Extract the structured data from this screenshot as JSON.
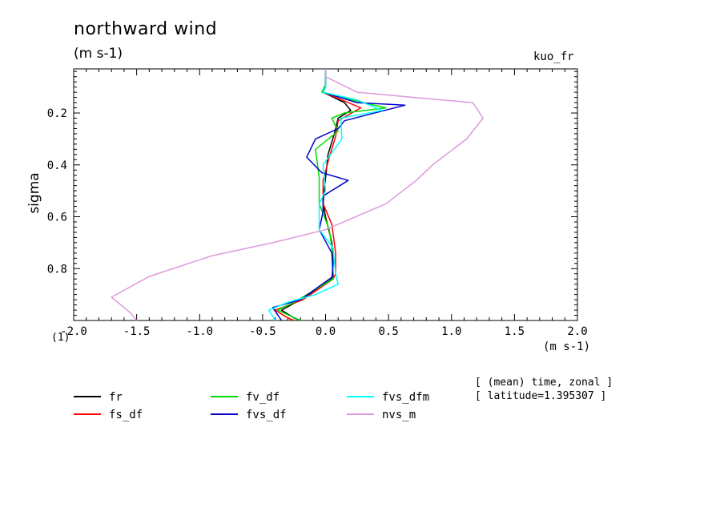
{
  "header": {
    "title": "northward wind",
    "units": "(m s-1)",
    "case_name": "kuo_fr",
    "x_units": "(m s-1)",
    "scale_factor": "(1)"
  },
  "meta": {
    "line1": "[ (mean) time, zonal ]",
    "line2": "[ latitude=1.395307 ]"
  },
  "chart_data": {
    "type": "line",
    "title": "northward wind",
    "subtitle": "(m s-1)",
    "xlabel": "(m s-1)",
    "ylabel": "sigma",
    "xlim": [
      -2.0,
      2.0
    ],
    "ylim": [
      0.03,
      1.0
    ],
    "y_reversed": true,
    "x_ticks": [
      "-2.0",
      "-1.5",
      "-1.0",
      "-0.5",
      "0.0",
      "0.5",
      "1.0",
      "1.5",
      "2.0"
    ],
    "x_tick_values": [
      -2.0,
      -1.5,
      -1.0,
      -0.5,
      0.0,
      0.5,
      1.0,
      1.5,
      2.0
    ],
    "y_ticks": [
      "0.2",
      "0.4",
      "0.6",
      "0.8"
    ],
    "y_tick_values": [
      0.2,
      0.4,
      0.6,
      0.8
    ],
    "legend_position": "bottom",
    "series": [
      {
        "name": "fr",
        "color": "#000000",
        "points": [
          [
            0.0,
            0.03
          ],
          [
            0.0,
            0.09
          ],
          [
            -0.02,
            0.12
          ],
          [
            0.15,
            0.16
          ],
          [
            0.2,
            0.19
          ],
          [
            0.1,
            0.22
          ],
          [
            0.07,
            0.28
          ],
          [
            0.02,
            0.36
          ],
          [
            0.0,
            0.45
          ],
          [
            -0.02,
            0.55
          ],
          [
            0.0,
            0.6
          ],
          [
            0.05,
            0.7
          ],
          [
            0.06,
            0.78
          ],
          [
            0.05,
            0.84
          ],
          [
            -0.2,
            0.92
          ],
          [
            -0.35,
            0.96
          ],
          [
            -0.25,
            0.99
          ],
          [
            -0.2,
            1.0
          ]
        ]
      },
      {
        "name": "fs_df",
        "color": "#ff0000",
        "points": [
          [
            0.0,
            0.03
          ],
          [
            0.0,
            0.09
          ],
          [
            -0.02,
            0.12
          ],
          [
            0.18,
            0.16
          ],
          [
            0.28,
            0.18
          ],
          [
            0.1,
            0.23
          ],
          [
            0.08,
            0.29
          ],
          [
            0.03,
            0.37
          ],
          [
            -0.02,
            0.46
          ],
          [
            -0.02,
            0.55
          ],
          [
            0.05,
            0.63
          ],
          [
            0.08,
            0.74
          ],
          [
            0.08,
            0.82
          ],
          [
            0.06,
            0.84
          ],
          [
            -0.18,
            0.92
          ],
          [
            -0.4,
            0.96
          ],
          [
            -0.3,
            0.99
          ],
          [
            -0.25,
            1.0
          ]
        ]
      },
      {
        "name": "fv_df",
        "color": "#00dd00",
        "points": [
          [
            0.0,
            0.03
          ],
          [
            0.0,
            0.09
          ],
          [
            -0.03,
            0.12
          ],
          [
            0.3,
            0.16
          ],
          [
            0.48,
            0.18
          ],
          [
            0.15,
            0.2
          ],
          [
            0.05,
            0.22
          ],
          [
            0.1,
            0.27
          ],
          [
            -0.08,
            0.34
          ],
          [
            -0.05,
            0.45
          ],
          [
            -0.05,
            0.55
          ],
          [
            0.03,
            0.65
          ],
          [
            0.05,
            0.72
          ],
          [
            0.06,
            0.84
          ],
          [
            -0.25,
            0.93
          ],
          [
            -0.38,
            0.96
          ],
          [
            -0.2,
            1.0
          ]
        ]
      },
      {
        "name": "fvs_df",
        "color": "#0000cc",
        "points": [
          [
            0.0,
            0.03
          ],
          [
            0.0,
            0.1
          ],
          [
            -0.02,
            0.12
          ],
          [
            0.25,
            0.16
          ],
          [
            0.63,
            0.17
          ],
          [
            0.15,
            0.23
          ],
          [
            0.1,
            0.26
          ],
          [
            -0.08,
            0.3
          ],
          [
            -0.15,
            0.37
          ],
          [
            -0.03,
            0.43
          ],
          [
            0.18,
            0.46
          ],
          [
            -0.02,
            0.52
          ],
          [
            -0.02,
            0.58
          ],
          [
            -0.05,
            0.65
          ],
          [
            0.05,
            0.74
          ],
          [
            0.06,
            0.83
          ],
          [
            -0.2,
            0.92
          ],
          [
            -0.42,
            0.95
          ],
          [
            -0.35,
            1.0
          ]
        ]
      },
      {
        "name": "fvs_dfm",
        "color": "#00ffff",
        "points": [
          [
            0.0,
            0.03
          ],
          [
            0.0,
            0.1
          ],
          [
            -0.02,
            0.12
          ],
          [
            0.25,
            0.15
          ],
          [
            0.45,
            0.19
          ],
          [
            0.12,
            0.22
          ],
          [
            0.13,
            0.3
          ],
          [
            -0.02,
            0.4
          ],
          [
            0.0,
            0.5
          ],
          [
            -0.05,
            0.55
          ],
          [
            -0.05,
            0.65
          ],
          [
            0.06,
            0.72
          ],
          [
            0.08,
            0.82
          ],
          [
            0.1,
            0.86
          ],
          [
            -0.08,
            0.9
          ],
          [
            -0.3,
            0.93
          ],
          [
            -0.45,
            0.96
          ],
          [
            -0.4,
            1.0
          ]
        ]
      },
      {
        "name": "nvs_m",
        "color": "#dd99dd",
        "points": [
          [
            0.0,
            0.03
          ],
          [
            0.0,
            0.06
          ],
          [
            0.25,
            0.12
          ],
          [
            0.7,
            0.14
          ],
          [
            1.17,
            0.16
          ],
          [
            1.25,
            0.22
          ],
          [
            1.12,
            0.3
          ],
          [
            0.85,
            0.4
          ],
          [
            0.72,
            0.46
          ],
          [
            0.48,
            0.55
          ],
          [
            0.0,
            0.65
          ],
          [
            -0.42,
            0.7
          ],
          [
            -0.9,
            0.75
          ],
          [
            -1.4,
            0.83
          ],
          [
            -1.7,
            0.91
          ],
          [
            -1.55,
            0.97
          ],
          [
            -1.5,
            1.0
          ]
        ]
      }
    ]
  }
}
